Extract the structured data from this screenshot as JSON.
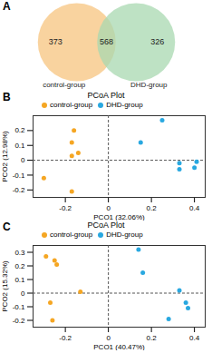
{
  "chart_data": [
    {
      "type": "venn",
      "panel": "A",
      "sets": [
        "control-group",
        "DHD-group"
      ],
      "values": [
        373,
        568,
        326
      ],
      "colors": [
        "#f7c47f",
        "#a8d8b0"
      ]
    },
    {
      "type": "scatter",
      "panel": "B",
      "title": "PCoA Plot",
      "x_label": "PCO1 (32.06%)",
      "y_label": "PCO2 (12.98%)",
      "xlim": [
        -0.35,
        0.45
      ],
      "xticks": [
        -0.2,
        0,
        0.2,
        0.4
      ],
      "ylim": [
        -0.25,
        0.3
      ],
      "yticks": [
        -0.2,
        -0.1,
        0,
        0.1,
        0.2
      ],
      "rules": {
        "x": 0,
        "y": 0
      },
      "legend": "top",
      "series": [
        {
          "name": "control-group",
          "color": "#f5a623",
          "x": [
            -0.16,
            -0.17,
            -0.14,
            -0.17,
            -0.3,
            -0.17
          ],
          "y": [
            0.2,
            0.12,
            0.05,
            0.03,
            -0.12,
            -0.21
          ]
        },
        {
          "name": "DHD-group",
          "color": "#29a8e0",
          "x": [
            0.25,
            0.15,
            0.33,
            0.33,
            0.4,
            0.41
          ],
          "y": [
            0.27,
            0.12,
            -0.02,
            -0.06,
            -0.05,
            -0.01
          ]
        }
      ]
    },
    {
      "type": "scatter",
      "panel": "C",
      "title": "PCoA Plot",
      "x_label": "PCO1 (40.47%)",
      "y_label": "PCO2 (15.32%)",
      "xlim": [
        -0.35,
        0.45
      ],
      "xticks": [
        -0.2,
        0,
        0.2,
        0.4
      ],
      "ylim": [
        -0.25,
        0.35
      ],
      "yticks": [
        -0.2,
        -0.1,
        0,
        0.1,
        0.2,
        0.3
      ],
      "rules": {
        "x": 0,
        "y": 0
      },
      "legend": "top",
      "series": [
        {
          "name": "control-group",
          "color": "#f5a623",
          "x": [
            -0.25,
            -0.24,
            -0.29,
            -0.13,
            -0.27,
            -0.26
          ],
          "y": [
            0.24,
            0.21,
            0.27,
            0.01,
            -0.07,
            -0.2
          ]
        },
        {
          "name": "DHD-group",
          "color": "#29a8e0",
          "x": [
            0.14,
            0.16,
            0.33,
            0.36,
            0.37,
            0.28
          ],
          "y": [
            0.32,
            0.15,
            0.02,
            -0.07,
            -0.11,
            -0.19
          ]
        }
      ]
    }
  ]
}
